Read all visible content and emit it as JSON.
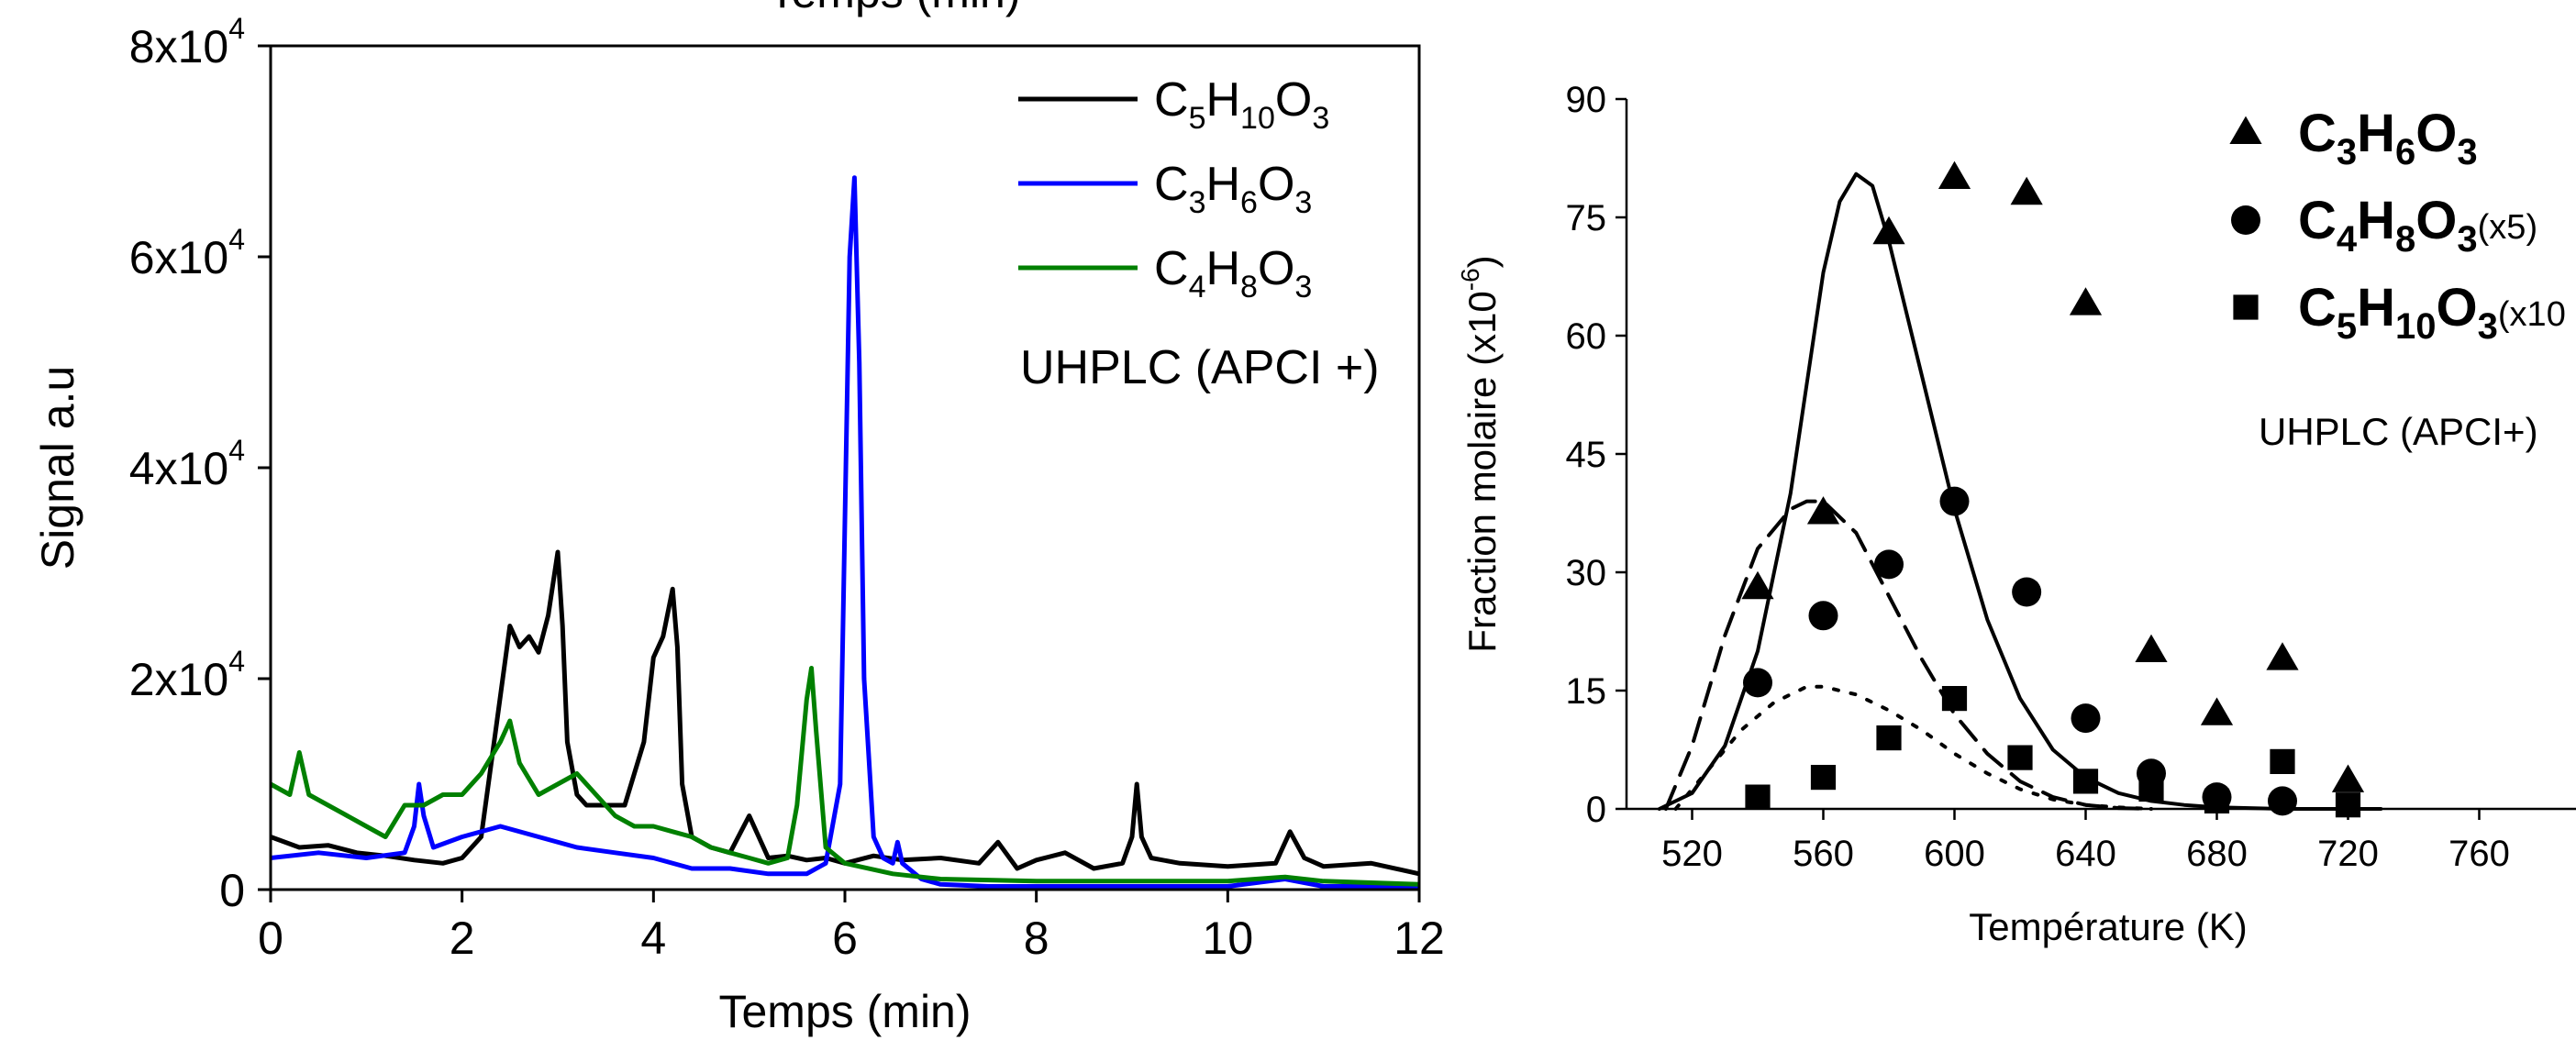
{
  "chart_data": [
    {
      "type": "line",
      "title": "",
      "xlabel": "Temps (min)",
      "ylabel": "Signal a.u",
      "top_axis_label": "Temps (min)",
      "xlim": [
        0,
        12
      ],
      "ylim": [
        0,
        80000
      ],
      "xticks": [
        "0",
        "2",
        "4",
        "6",
        "8",
        "10",
        "12"
      ],
      "yticks": [
        {
          "mant": "0",
          "exp": ""
        },
        {
          "mant": "2x10",
          "exp": "4"
        },
        {
          "mant": "4x10",
          "exp": "4"
        },
        {
          "mant": "6x10",
          "exp": "4"
        },
        {
          "mant": "8x10",
          "exp": "4"
        }
      ],
      "legend": {
        "placement": "top-right",
        "entries": [
          {
            "parts": [
              "C",
              "5",
              "H",
              "10",
              "O",
              "3"
            ],
            "color": "#000000"
          },
          {
            "parts": [
              "C",
              "3",
              "H",
              "6",
              "O",
              "3"
            ],
            "color": "#0000ff"
          },
          {
            "parts": [
              "C",
              "4",
              "H",
              "8",
              "O",
              "3"
            ],
            "color": "#008000"
          }
        ],
        "note": "UHPLC (APCI +)"
      },
      "series": [
        {
          "color": "#000000",
          "x": [
            0,
            0.3,
            0.6,
            0.9,
            1.2,
            1.5,
            1.8,
            2.0,
            2.2,
            2.35,
            2.5,
            2.6,
            2.7,
            2.8,
            2.9,
            3.0,
            3.05,
            3.1,
            3.2,
            3.3,
            3.5,
            3.7,
            3.9,
            4.0,
            4.1,
            4.2,
            4.25,
            4.3,
            4.4,
            4.6,
            4.8,
            5.0,
            5.1,
            5.2,
            5.4,
            5.6,
            5.8,
            6.0,
            6.3,
            6.6,
            7.0,
            7.4,
            7.6,
            7.8,
            8.0,
            8.3,
            8.6,
            8.9,
            9.0,
            9.05,
            9.1,
            9.2,
            9.5,
            10.0,
            10.5,
            10.65,
            10.8,
            11.0,
            11.5,
            12.0
          ],
          "y": [
            5000,
            4000,
            4200,
            3500,
            3200,
            2800,
            2500,
            3000,
            5000,
            15000,
            25000,
            23000,
            24000,
            22500,
            26000,
            32000,
            25000,
            14000,
            9000,
            8000,
            8000,
            8000,
            14000,
            22000,
            24000,
            28500,
            23000,
            10000,
            5000,
            4000,
            3500,
            7000,
            5000,
            3000,
            3200,
            2800,
            3000,
            2500,
            3200,
            2800,
            3000,
            2500,
            4500,
            2000,
            2800,
            3500,
            2000,
            2500,
            5000,
            10000,
            5000,
            3000,
            2500,
            2200,
            2500,
            5500,
            3000,
            2200,
            2500,
            1500
          ]
        },
        {
          "color": "#0000ff",
          "x": [
            0,
            0.5,
            1.0,
            1.4,
            1.5,
            1.55,
            1.6,
            1.7,
            2.0,
            2.4,
            2.8,
            3.2,
            3.6,
            4.0,
            4.4,
            4.8,
            5.2,
            5.6,
            5.8,
            5.95,
            6.0,
            6.05,
            6.1,
            6.15,
            6.2,
            6.3,
            6.4,
            6.5,
            6.55,
            6.6,
            6.8,
            7.0,
            7.5,
            8.0,
            9.0,
            10.0,
            10.6,
            11.0,
            12.0
          ],
          "y": [
            3000,
            3500,
            3000,
            3500,
            6000,
            10000,
            7000,
            4000,
            5000,
            6000,
            5000,
            4000,
            3500,
            3000,
            2000,
            2000,
            1500,
            1500,
            2500,
            10000,
            35000,
            60000,
            67500,
            50000,
            20000,
            5000,
            3000,
            2500,
            4500,
            2500,
            1000,
            500,
            300,
            300,
            300,
            300,
            1000,
            300,
            300
          ]
        },
        {
          "color": "#008000",
          "x": [
            0,
            0.2,
            0.3,
            0.4,
            0.6,
            0.8,
            1.0,
            1.2,
            1.4,
            1.6,
            1.8,
            2.0,
            2.2,
            2.4,
            2.5,
            2.6,
            2.8,
            3.0,
            3.2,
            3.4,
            3.6,
            3.8,
            4.0,
            4.2,
            4.4,
            4.6,
            4.8,
            5.0,
            5.2,
            5.4,
            5.5,
            5.6,
            5.65,
            5.7,
            5.8,
            6.0,
            6.5,
            7.0,
            8.0,
            9.0,
            10.0,
            10.6,
            11.0,
            12.0
          ],
          "y": [
            10000,
            9000,
            13000,
            9000,
            8000,
            7000,
            6000,
            5000,
            8000,
            8000,
            9000,
            9000,
            11000,
            14000,
            16000,
            12000,
            9000,
            10000,
            11000,
            9000,
            7000,
            6000,
            6000,
            5500,
            5000,
            4000,
            3500,
            3000,
            2500,
            3000,
            8000,
            18000,
            21000,
            15000,
            4000,
            2500,
            1500,
            1000,
            800,
            800,
            800,
            1200,
            800,
            500
          ]
        }
      ]
    },
    {
      "type": "scatter",
      "title": "",
      "xlabel": "Température (K)",
      "ylabel": "Fraction molaire (x10",
      "ylabel_exp": "-6",
      "ylabel_end": ")",
      "xlim": [
        500,
        780
      ],
      "ylim": [
        0,
        90
      ],
      "xticks": [
        "520",
        "560",
        "600",
        "640",
        "680",
        "720",
        "760"
      ],
      "yticks": [
        "0",
        "15",
        "30",
        "45",
        "60",
        "75",
        "90"
      ],
      "legend": {
        "placement": "top-right",
        "entries": [
          {
            "parts": [
              "C",
              "3",
              "H",
              "6",
              "O",
              "3"
            ],
            "suffix": "",
            "marker": "triangle"
          },
          {
            "parts": [
              "C",
              "4",
              "H",
              "8",
              "O",
              "3"
            ],
            "suffix": "(x5)",
            "marker": "circle"
          },
          {
            "parts": [
              "C",
              "5",
              "H",
              "10",
              "O",
              "3"
            ],
            "suffix": "(x10",
            "marker": "square"
          }
        ],
        "note": "UHPLC (APCI+)"
      },
      "series": [
        {
          "marker": "triangle",
          "x": [
            540,
            560,
            580,
            600,
            622,
            640,
            660,
            680,
            700,
            720
          ],
          "y": [
            28,
            37.5,
            73,
            80,
            78,
            64,
            20,
            12,
            19,
            3.5
          ]
        },
        {
          "marker": "circle",
          "x": [
            540,
            560,
            580,
            600,
            622,
            640,
            660,
            680,
            700
          ],
          "y": [
            16,
            24.5,
            31,
            39,
            27.5,
            11.5,
            4.5,
            1.5,
            1
          ]
        },
        {
          "marker": "square",
          "x": [
            540,
            560,
            580,
            600,
            620,
            640,
            660,
            680,
            700,
            720
          ],
          "y": [
            1.5,
            4,
            9,
            14,
            6.5,
            3.5,
            2.5,
            1,
            6,
            0.5
          ]
        }
      ],
      "curves": [
        {
          "style": "solid",
          "x": [
            510,
            520,
            530,
            540,
            550,
            560,
            565,
            570,
            575,
            580,
            590,
            600,
            610,
            620,
            630,
            640,
            650,
            660,
            670,
            680,
            700,
            730
          ],
          "y": [
            0,
            2,
            8,
            20,
            40,
            68,
            77,
            80.5,
            79,
            72,
            55,
            38,
            24,
            14,
            7.5,
            4,
            2,
            1,
            0.5,
            0.2,
            0,
            0
          ]
        },
        {
          "style": "dashed",
          "x": [
            512,
            520,
            530,
            540,
            550,
            555,
            560,
            570,
            580,
            590,
            600,
            610,
            620,
            630,
            640,
            650,
            660
          ],
          "y": [
            0,
            8,
            22,
            33,
            38,
            39,
            39,
            35,
            27,
            19,
            12,
            7,
            3.5,
            1.5,
            0.5,
            0.1,
            0
          ]
        },
        {
          "style": "dotted",
          "x": [
            515,
            525,
            535,
            545,
            555,
            560,
            570,
            580,
            590,
            600,
            610,
            620,
            630,
            640,
            650,
            660
          ],
          "y": [
            0,
            5,
            10,
            13.5,
            15.5,
            15.5,
            14.5,
            12.5,
            10,
            7,
            4.5,
            2.5,
            1.2,
            0.5,
            0.2,
            0
          ]
        }
      ]
    }
  ]
}
